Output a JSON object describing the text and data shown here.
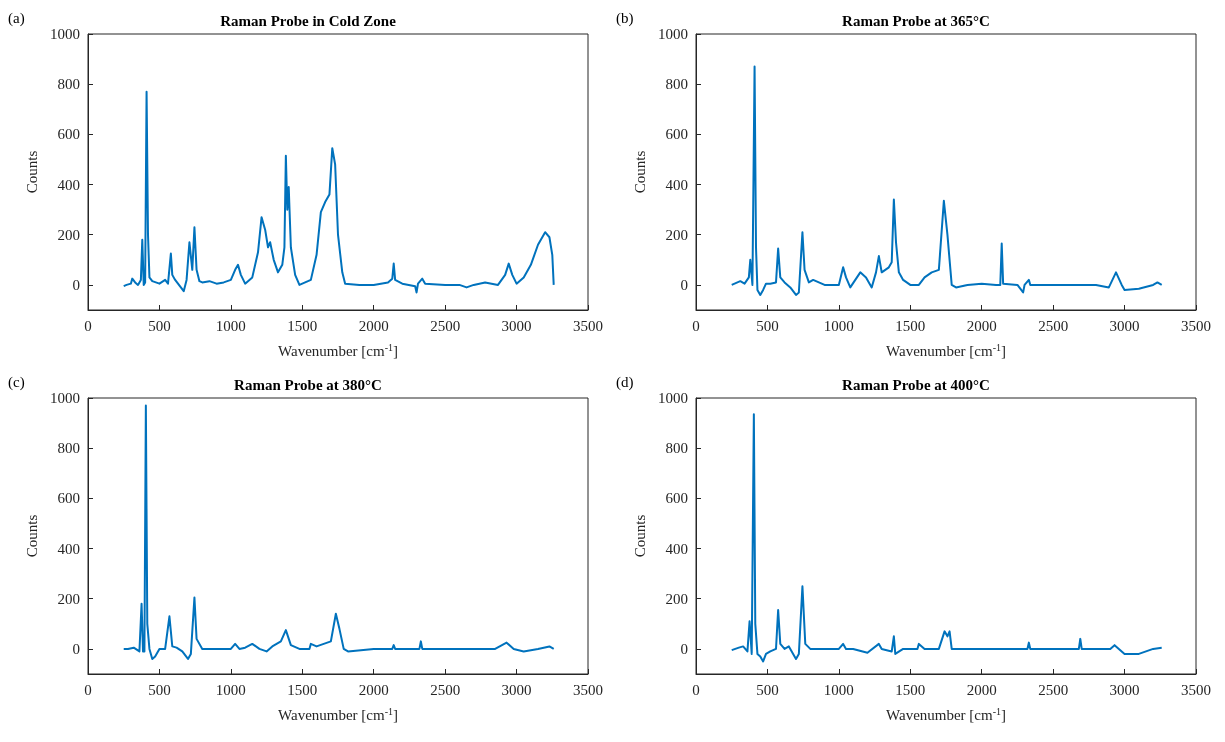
{
  "chart_data": [
    {
      "type": "line",
      "title": "Raman Probe in Cold Zone",
      "xlabel": "Wavenumber [cm$^{-1}$]",
      "ylabel": "Counts",
      "annotations": [
        "(a)"
      ],
      "x": [
        250,
        270,
        300,
        310,
        330,
        350,
        370,
        380,
        390,
        400,
        410,
        420,
        430,
        450,
        500,
        540,
        560,
        580,
        590,
        610,
        650,
        670,
        690,
        710,
        730,
        745,
        760,
        780,
        800,
        850,
        900,
        950,
        1000,
        1030,
        1050,
        1070,
        1100,
        1150,
        1190,
        1215,
        1240,
        1260,
        1275,
        1300,
        1330,
        1360,
        1375,
        1385,
        1395,
        1405,
        1420,
        1450,
        1480,
        1520,
        1560,
        1600,
        1630,
        1660,
        1690,
        1710,
        1730,
        1750,
        1780,
        1800,
        1900,
        2000,
        2100,
        2130,
        2140,
        2150,
        2200,
        2290,
        2300,
        2310,
        2340,
        2360,
        2500,
        2600,
        2650,
        2700,
        2780,
        2870,
        2920,
        2945,
        2970,
        3000,
        3050,
        3100,
        3150,
        3200,
        3230,
        3250,
        3260
      ],
      "series": [
        {
          "color": "#0072bd",
          "values": [
            -5,
            0,
            5,
            25,
            10,
            0,
            20,
            180,
            0,
            10,
            770,
            200,
            30,
            15,
            5,
            20,
            5,
            125,
            40,
            20,
            -10,
            -25,
            20,
            170,
            60,
            230,
            60,
            15,
            10,
            15,
            5,
            10,
            20,
            60,
            80,
            40,
            5,
            30,
            130,
            270,
            220,
            150,
            170,
            100,
            50,
            80,
            150,
            515,
            300,
            390,
            150,
            40,
            0,
            10,
            20,
            120,
            290,
            330,
            360,
            545,
            480,
            200,
            50,
            5,
            0,
            0,
            10,
            25,
            85,
            20,
            5,
            -5,
            -30,
            5,
            25,
            5,
            0,
            0,
            -10,
            0,
            10,
            0,
            40,
            85,
            40,
            5,
            30,
            80,
            160,
            210,
            190,
            120,
            0
          ]
        }
      ],
      "xlim": [
        0,
        3500
      ],
      "xticks": [
        0,
        500,
        1000,
        1500,
        2000,
        2500,
        3000,
        3500
      ],
      "ylim": [
        -100,
        1000
      ],
      "yticks": [
        0,
        200,
        400,
        600,
        800,
        1000
      ]
    },
    {
      "type": "line",
      "title": "Raman Probe at 365°C",
      "xlabel": "Wavenumber [cm$^{-1}$]",
      "ylabel": "Counts",
      "annotations": [
        "(b)"
      ],
      "x": [
        250,
        290,
        310,
        340,
        370,
        380,
        395,
        410,
        420,
        430,
        450,
        470,
        490,
        520,
        560,
        575,
        590,
        620,
        660,
        700,
        720,
        745,
        760,
        790,
        820,
        900,
        1000,
        1030,
        1050,
        1080,
        1150,
        1190,
        1230,
        1260,
        1280,
        1300,
        1350,
        1370,
        1385,
        1400,
        1420,
        1450,
        1500,
        1560,
        1600,
        1650,
        1700,
        1735,
        1760,
        1790,
        1820,
        1900,
        2000,
        2100,
        2130,
        2140,
        2150,
        2250,
        2290,
        2300,
        2330,
        2340,
        2500,
        2700,
        2800,
        2890,
        2940,
        2980,
        3000,
        3100,
        3200,
        3230,
        3260
      ],
      "series": [
        {
          "color": "#0072bd",
          "values": [
            0,
            10,
            15,
            5,
            30,
            100,
            0,
            870,
            150,
            -20,
            -40,
            -20,
            5,
            5,
            10,
            145,
            30,
            10,
            -10,
            -40,
            -30,
            210,
            60,
            10,
            20,
            0,
            0,
            70,
            30,
            -10,
            50,
            30,
            -10,
            50,
            115,
            50,
            70,
            90,
            340,
            170,
            50,
            20,
            0,
            0,
            30,
            50,
            60,
            335,
            200,
            0,
            -10,
            0,
            5,
            0,
            0,
            165,
            5,
            0,
            -30,
            0,
            20,
            0,
            0,
            0,
            0,
            -10,
            50,
            0,
            -20,
            -15,
            0,
            10,
            0
          ]
        }
      ],
      "xlim": [
        0,
        3500
      ],
      "xticks": [
        0,
        500,
        1000,
        1500,
        2000,
        2500,
        3000,
        3500
      ],
      "ylim": [
        -100,
        1000
      ],
      "yticks": [
        0,
        200,
        400,
        600,
        800,
        1000
      ]
    },
    {
      "type": "line",
      "title": "Raman Probe at 380°C",
      "xlabel": "Wavenumber [cm$^{-1}$]",
      "ylabel": "Counts",
      "annotations": [
        "(c)"
      ],
      "x": [
        250,
        280,
        320,
        360,
        375,
        385,
        395,
        405,
        415,
        430,
        450,
        470,
        500,
        540,
        570,
        590,
        620,
        660,
        700,
        720,
        745,
        760,
        800,
        900,
        1000,
        1030,
        1060,
        1100,
        1150,
        1200,
        1250,
        1290,
        1350,
        1385,
        1420,
        1480,
        1550,
        1560,
        1600,
        1700,
        1735,
        1760,
        1790,
        1820,
        2000,
        2130,
        2140,
        2150,
        2300,
        2320,
        2330,
        2340,
        2500,
        2700,
        2780,
        2850,
        2930,
        2980,
        3050,
        3150,
        3230,
        3260
      ],
      "series": [
        {
          "color": "#0072bd",
          "values": [
            0,
            0,
            5,
            -10,
            180,
            -10,
            -10,
            970,
            100,
            0,
            -40,
            -30,
            0,
            0,
            130,
            10,
            5,
            -10,
            -40,
            -20,
            205,
            40,
            0,
            0,
            0,
            20,
            0,
            5,
            20,
            0,
            -10,
            10,
            30,
            75,
            15,
            0,
            0,
            20,
            10,
            30,
            140,
            80,
            0,
            -10,
            0,
            0,
            15,
            0,
            0,
            0,
            30,
            0,
            0,
            0,
            0,
            0,
            25,
            0,
            -10,
            0,
            10,
            0
          ]
        }
      ],
      "xlim": [
        0,
        3500
      ],
      "xticks": [
        0,
        500,
        1000,
        1500,
        2000,
        2500,
        3000,
        3500
      ],
      "ylim": [
        -100,
        1000
      ],
      "yticks": [
        0,
        200,
        400,
        600,
        800,
        1000
      ]
    },
    {
      "type": "line",
      "title": "Raman Probe at 400°C",
      "xlabel": "Wavenumber [cm$^{-1}$]",
      "ylabel": "Counts",
      "annotations": [
        "(d)"
      ],
      "x": [
        250,
        300,
        330,
        360,
        375,
        390,
        405,
        415,
        430,
        450,
        470,
        490,
        520,
        560,
        575,
        590,
        620,
        650,
        700,
        720,
        745,
        765,
        800,
        1000,
        1030,
        1050,
        1100,
        1200,
        1280,
        1300,
        1370,
        1385,
        1395,
        1450,
        1550,
        1560,
        1600,
        1700,
        1740,
        1760,
        1775,
        1790,
        1850,
        2000,
        2320,
        2330,
        2340,
        2500,
        2680,
        2690,
        2700,
        2900,
        2930,
        2960,
        3000,
        3100,
        3200,
        3260
      ],
      "series": [
        {
          "color": "#0072bd",
          "values": [
            -5,
            5,
            10,
            -10,
            110,
            -20,
            935,
            100,
            -20,
            -30,
            -50,
            -20,
            -10,
            0,
            155,
            20,
            0,
            10,
            -40,
            -20,
            250,
            20,
            0,
            0,
            20,
            0,
            0,
            -15,
            20,
            0,
            -10,
            50,
            -20,
            0,
            0,
            20,
            0,
            0,
            70,
            50,
            70,
            0,
            0,
            0,
            0,
            25,
            0,
            0,
            0,
            40,
            0,
            0,
            15,
            0,
            -20,
            -20,
            0,
            5
          ]
        }
      ],
      "xlim": [
        0,
        3500
      ],
      "xticks": [
        0,
        500,
        1000,
        1500,
        2000,
        2500,
        3000,
        3500
      ],
      "ylim": [
        -100,
        1000
      ],
      "yticks": [
        0,
        200,
        400,
        600,
        800,
        1000
      ]
    }
  ]
}
